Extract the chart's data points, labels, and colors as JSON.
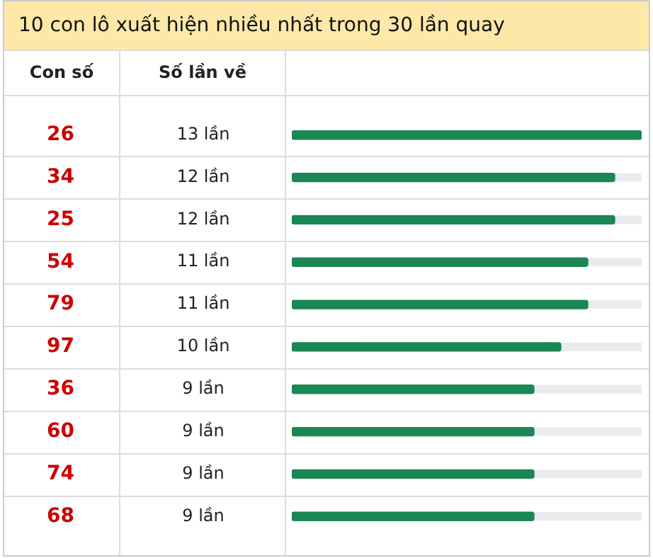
{
  "chart_data": {
    "type": "bar",
    "orientation": "horizontal",
    "title": "10 con lô xuất hiện nhiều nhất trong 30 lần quay",
    "ylabel": "Con số",
    "xlabel": "Số lần về",
    "categories": [
      "26",
      "34",
      "25",
      "54",
      "79",
      "97",
      "36",
      "60",
      "74",
      "68"
    ],
    "values": [
      13,
      12,
      12,
      11,
      11,
      10,
      9,
      9,
      9,
      9
    ],
    "value_labels": [
      "13 lần",
      "12 lần",
      "12 lần",
      "11 lần",
      "11 lần",
      "10 lần",
      "9 lần",
      "9 lần",
      "9 lần",
      "9 lần"
    ],
    "color": "#1a8754",
    "xlim": [
      0,
      13
    ],
    "tick_labels": "y",
    "grid": false,
    "legend": false
  }
}
